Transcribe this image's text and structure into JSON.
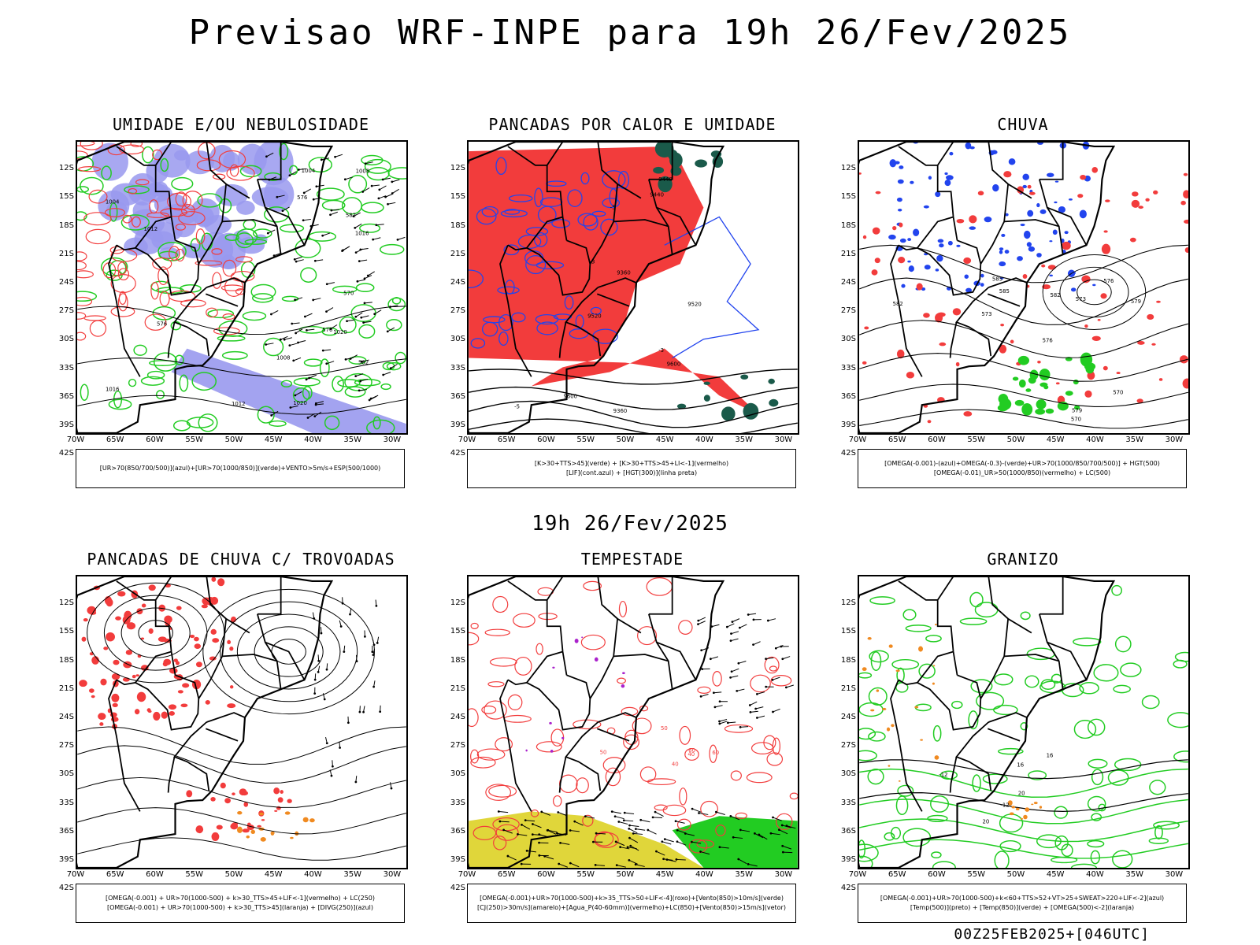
{
  "title": "Previsao WRF-INPE  para 19h 26/Fev/2025",
  "mid_title": "19h 26/Fev/2025",
  "footer": "00Z25FEB2025+[046UTC]",
  "lat_ticks": [
    "12S",
    "15S",
    "18S",
    "21S",
    "24S",
    "27S",
    "30S",
    "33S",
    "36S",
    "39S",
    "42S"
  ],
  "lon_ticks": [
    "70W",
    "65W",
    "60W",
    "55W",
    "50W",
    "45W",
    "40W",
    "35W",
    "30W"
  ],
  "colors": {
    "red": "#f23c3c",
    "green": "#22cc22",
    "blue": "#2244ee",
    "lavender": "#9999ee",
    "darkgreen": "#1a5a4a",
    "yellow": "#e0d63a",
    "orange": "#f08a20",
    "purple": "#aa22cc"
  },
  "panels": [
    {
      "title": "UMIDADE E/OU NEBULOSIDADE",
      "legend": [
        "[UR>70(850/700/500)](azul)+[UR>70(1000/850)](verde)+VENTO>5m/s+ESP(500/1000)"
      ],
      "contour_labels": [
        "1012",
        "1008",
        "1016",
        "1020",
        "1004",
        "570",
        "576",
        "582"
      ]
    },
    {
      "title": "PANCADAS POR CALOR E UMIDADE",
      "legend": [
        "[K>30+TTS>45](verde) + [K>30+TTS>45+LI<-1](vermelho)",
        "[LIF](cont.azul) + [HGT(300)](linha preta)"
      ],
      "contour_labels": [
        "9600",
        "9520",
        "9440",
        "9360",
        "-3",
        "-5"
      ]
    },
    {
      "title": "CHUVA",
      "legend": [
        "[OMEGA(-0.001)-(azul)+OMEGA(-0.3)-(verde)+UR>70(1000/850/700/500)] + HGT(500)",
        "[OMEGA(-0.01)_UR>50(1000/850)(vermelho) + LC(500)"
      ],
      "contour_labels": [
        "585",
        "582",
        "579",
        "576",
        "573",
        "570"
      ]
    },
    {
      "title": "PANCADAS DE CHUVA C/ TROVOADAS",
      "legend": [
        "[OMEGA(-0.001) + UR>70(1000-500) + k>30_TTS>45+LIF<-1](vermelho) + LC(250)",
        "[OMEGA(-0.001) + UR>70(1000-500) + k>30_TTS>45](laranja) + [DIVG(250)](azul)"
      ],
      "contour_labels": []
    },
    {
      "title": "TEMPESTADE",
      "legend": [
        "[OMEGA(-0.001)+UR>70(1000-500)+k>35_TTS>50+LIF<-4](roxo)+[Vento(850)>10m/s](verde)",
        "[CJ(250)>30m/s](amarelo)+[Agua_P(40-60mm)](vermelho)+LC(850)+[Vento(850)>15m/s](vetor)"
      ],
      "contour_labels": [
        "40",
        "50",
        "60"
      ]
    },
    {
      "title": "GRANIZO",
      "legend": [
        "[OMEGA(-0.001)+UR>70(1000-500)+k<60+TTS>52+VT>25+SWEAT>220+LIF<-2](azul)",
        "[Temp(500)](preto) + [Temp(850)](verde) + [OMEGA(500)<-2](laranja)"
      ],
      "contour_labels": [
        "-12",
        "16",
        "20"
      ]
    }
  ]
}
